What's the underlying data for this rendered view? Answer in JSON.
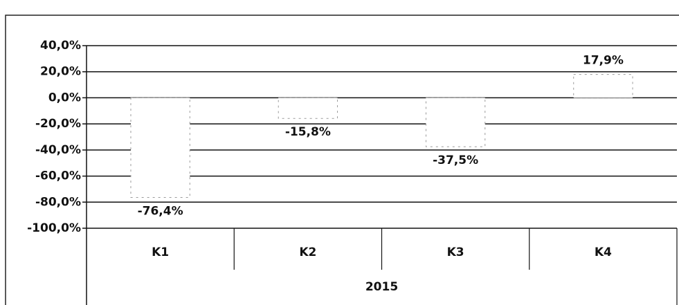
{
  "chart_data": {
    "type": "bar",
    "categories": [
      "K1",
      "K2",
      "K3",
      "K4"
    ],
    "group_label": "2015",
    "values": [
      -76.4,
      -15.8,
      -37.5,
      17.9
    ],
    "value_labels": [
      "-76,4%",
      "-15,8%",
      "-37,5%",
      "17,9%"
    ],
    "color": "#ffffff",
    "ylim": [
      -100,
      40
    ],
    "yticks": [
      {
        "value": -100,
        "label": "-100,0%"
      },
      {
        "value": -80,
        "label": "-80,0%"
      },
      {
        "value": -60,
        "label": "-60,0%"
      },
      {
        "value": -40,
        "label": "-40,0%"
      },
      {
        "value": -20,
        "label": "-20,0%"
      },
      {
        "value": 0,
        "label": "0,0%"
      },
      {
        "value": 20,
        "label": "20,0%"
      },
      {
        "value": 40,
        "label": "40,0%"
      }
    ],
    "grid": true
  }
}
